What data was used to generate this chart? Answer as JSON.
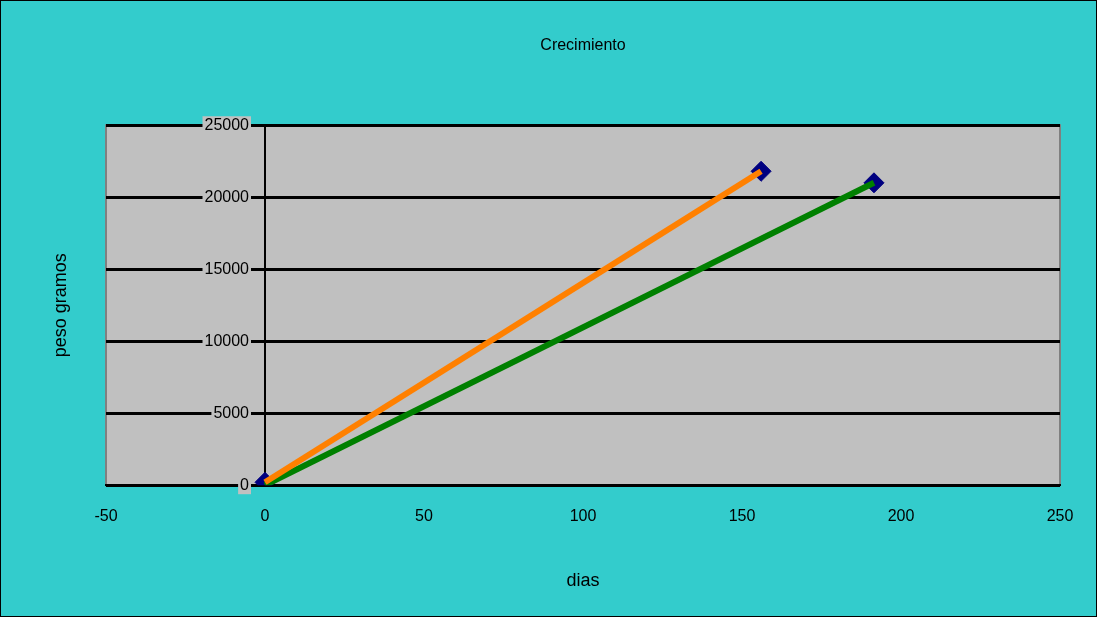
{
  "chart_data": {
    "type": "line",
    "title": "Crecimiento",
    "xlabel": "dias",
    "ylabel": "peso gramos",
    "xlim": [
      -50,
      250
    ],
    "xticks": [
      -50,
      0,
      50,
      100,
      150,
      200,
      250
    ],
    "ylim": [
      0,
      25000
    ],
    "yticks": [
      0,
      5000,
      10000,
      15000,
      20000,
      25000
    ],
    "grid": "y",
    "legend": false,
    "line_style": "solid",
    "series": [
      {
        "type": "line",
        "color": "#ff8000",
        "x": [
          0,
          156
        ],
        "values": [
          200,
          21800
        ]
      },
      {
        "type": "line",
        "color": "#008000",
        "x": [
          0,
          191.5
        ],
        "values": [
          0,
          21000
        ]
      },
      {
        "type": "scatter",
        "color": "#000080",
        "marker": "diamond",
        "x": [
          0,
          156,
          191.5
        ],
        "values": [
          200,
          21800,
          21000
        ]
      }
    ]
  }
}
